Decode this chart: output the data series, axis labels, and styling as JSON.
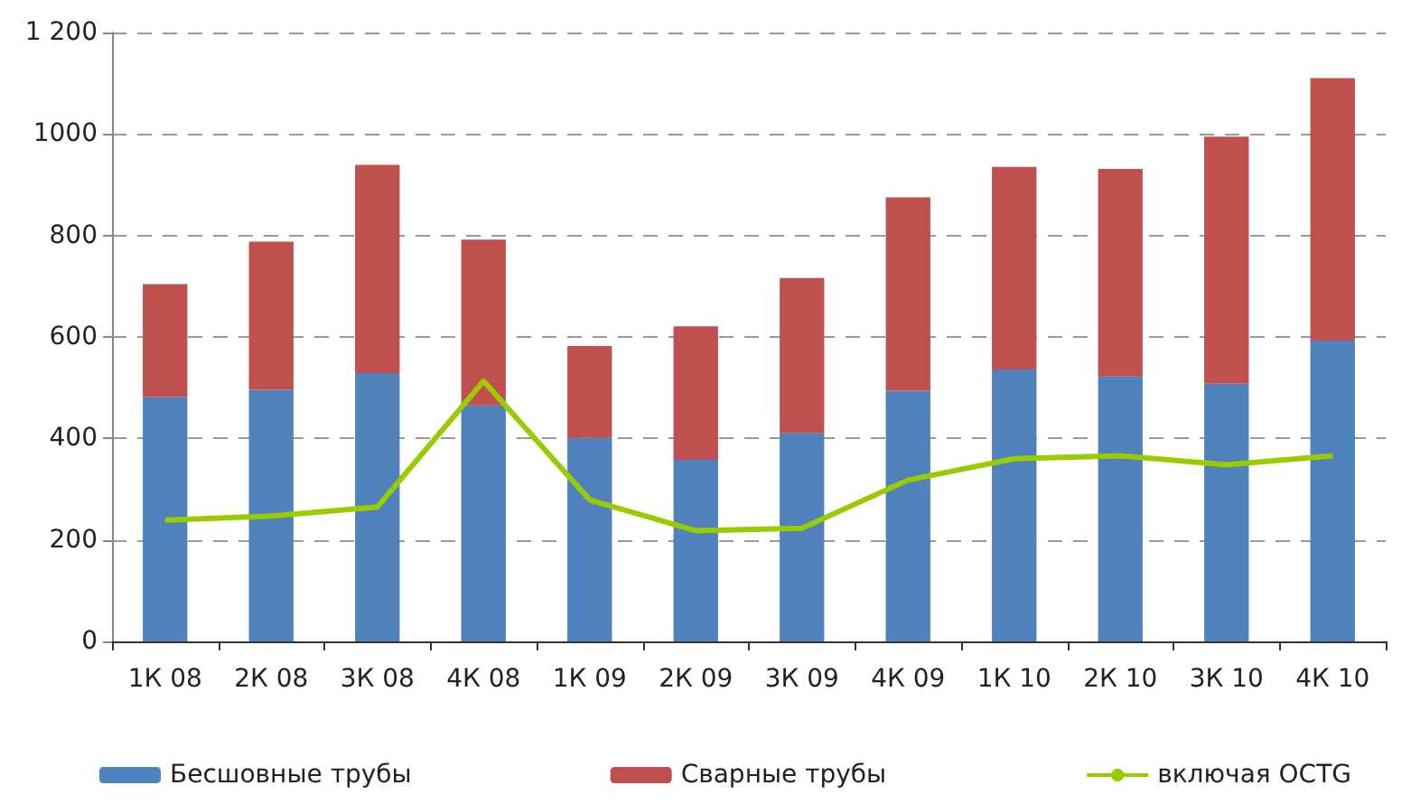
{
  "chart_data": {
    "type": "bar",
    "stacked": true,
    "categories": [
      "1К 08",
      "2К 08",
      "3К 08",
      "4К 08",
      "1К 09",
      "2К 09",
      "3К 09",
      "4К 09",
      "1К 10",
      "2К 10",
      "3К 10",
      "4К 10"
    ],
    "series": [
      {
        "name": "Бесшовные трубы",
        "color": "#4f81bd",
        "values": [
          482,
          496,
          529,
          465,
          401,
          358,
          411,
          494,
          536,
          522,
          508,
          593
        ]
      },
      {
        "name": "Сварные трубы",
        "color": "#c0504d",
        "values": [
          222,
          292,
          410,
          327,
          181,
          263,
          305,
          381,
          399,
          409,
          487,
          517
        ]
      },
      {
        "name": "включая OCTG",
        "type": "line",
        "color": "#99cc00",
        "values": [
          239,
          247,
          265,
          513,
          279,
          218,
          223,
          318,
          360,
          366,
          348,
          366
        ]
      }
    ],
    "ylim": [
      0,
      1200
    ],
    "yticks": [
      0,
      200,
      400,
      600,
      800,
      1000,
      {
        "value": 1200,
        "label": "1 200"
      }
    ],
    "grid": "y",
    "legend": "bottom",
    "marker": "none"
  }
}
